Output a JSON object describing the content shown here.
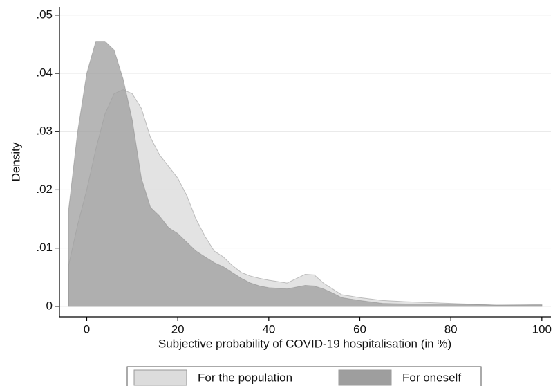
{
  "chart_data": {
    "type": "area",
    "x_label": "Subjective probability of COVID-19 hospitalisation (in %)",
    "y_label": "Density",
    "x": [
      -4,
      -2,
      0,
      2,
      4,
      6,
      8,
      10,
      12,
      14,
      16,
      18,
      20,
      22,
      24,
      26,
      28,
      30,
      32,
      34,
      36,
      38,
      40,
      44,
      48,
      50,
      52,
      54,
      56,
      60,
      65,
      70,
      80,
      90,
      100
    ],
    "series": [
      {
        "name": "For the population",
        "color": "#dcdcdc",
        "values": [
          0.007,
          0.014,
          0.02,
          0.027,
          0.033,
          0.0365,
          0.0372,
          0.0365,
          0.034,
          0.029,
          0.026,
          0.024,
          0.022,
          0.019,
          0.015,
          0.012,
          0.0095,
          0.0085,
          0.007,
          0.0058,
          0.0052,
          0.0048,
          0.0045,
          0.004,
          0.0055,
          0.0054,
          0.004,
          0.003,
          0.002,
          0.0015,
          0.001,
          0.0008,
          0.0005,
          0.0002,
          0.0003
        ]
      },
      {
        "name": "For oneself",
        "color": "#9e9e9e",
        "values": [
          0.0165,
          0.03,
          0.04,
          0.0455,
          0.0455,
          0.044,
          0.039,
          0.032,
          0.022,
          0.017,
          0.0155,
          0.0135,
          0.0125,
          0.011,
          0.0095,
          0.0085,
          0.0075,
          0.0068,
          0.0058,
          0.0048,
          0.004,
          0.0035,
          0.0032,
          0.003,
          0.0036,
          0.0035,
          0.003,
          0.0023,
          0.0015,
          0.001,
          0.0005,
          0.0004,
          0.0004,
          0.0002,
          0.0002
        ]
      }
    ],
    "xlim": [
      -6,
      102
    ],
    "ylim": [
      -0.0018,
      0.0514
    ],
    "xticks": [
      0,
      20,
      40,
      60,
      80,
      100
    ],
    "yticks": [
      0,
      {
        "value": 0.01,
        "label": ".01"
      },
      {
        "value": 0.02,
        "label": ".02"
      },
      {
        "value": 0.03,
        "label": ".03"
      },
      {
        "value": 0.04,
        "label": ".04"
      },
      {
        "value": 0.05,
        "label": ".05"
      }
    ],
    "grid": true
  }
}
